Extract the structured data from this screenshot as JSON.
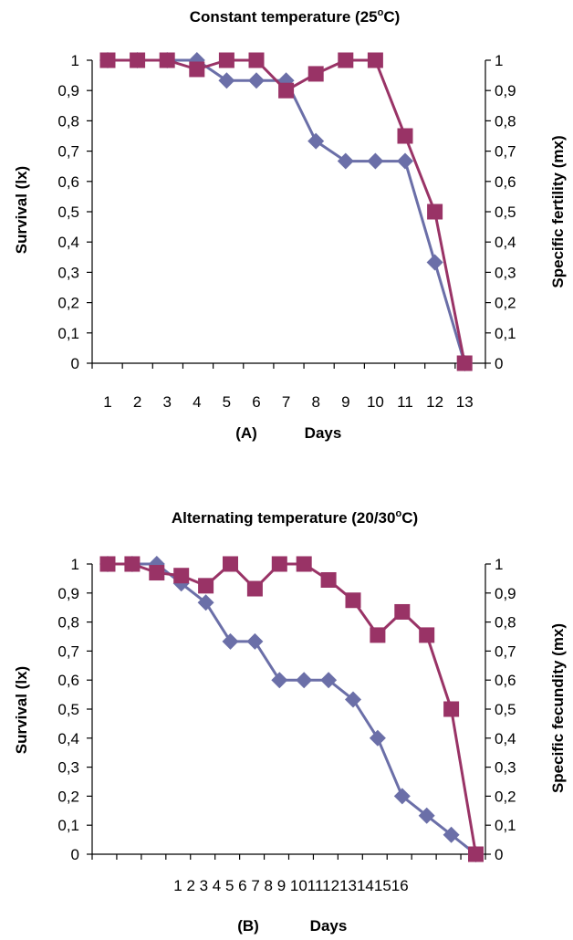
{
  "chart_data": [
    {
      "panel": "(A)",
      "type": "line",
      "title": "Constant temperature (25",
      "title_deg": "o",
      "title_tail": "C)",
      "xlabel": "Days",
      "ylabel_left": "Survival (lx)",
      "ylabel_right": "Specific fertility  (mx)",
      "ylim": [
        0,
        1
      ],
      "y_ticks": [
        "0",
        "0,1",
        "0,2",
        "0,3",
        "0,4",
        "0,5",
        "0,6",
        "0,7",
        "0,8",
        "0,9",
        "1"
      ],
      "categories": [
        "1",
        "2",
        "3",
        "4",
        "5",
        "6",
        "7",
        "8",
        "9",
        "10",
        "11",
        "12",
        "13"
      ],
      "series": [
        {
          "marker": "diamond",
          "color": "#6b6fa8",
          "values": [
            1,
            1,
            1,
            1,
            0.933,
            0.933,
            0.933,
            0.733,
            0.667,
            0.667,
            0.667,
            0.333,
            0
          ]
        },
        {
          "marker": "square",
          "color": "#993366",
          "values": [
            1,
            1,
            1,
            0.97,
            1,
            1,
            0.9,
            0.955,
            1,
            1,
            0.75,
            0.5,
            0
          ]
        }
      ]
    },
    {
      "panel": "(B)",
      "type": "line",
      "title": "Alternating temperature (20/30",
      "title_deg": "o",
      "title_tail": "C)",
      "xlabel": "Days",
      "ylabel_left": "Survival (lx)",
      "ylabel_right": "Specific fecundity (mx)",
      "ylim": [
        0,
        1
      ],
      "y_ticks": [
        "0",
        "0,1",
        "0,2",
        "0,3",
        "0,4",
        "0,5",
        "0,6",
        "0,7",
        "0,8",
        "0,9",
        "1"
      ],
      "categories": [
        "1",
        "2",
        "3",
        "4",
        "5",
        "6",
        "7",
        "8",
        "9",
        "10",
        "11",
        "12",
        "13",
        "14",
        "15",
        "16"
      ],
      "x_tick_text": "1 2 3 4 5 6 7 8 9 10111213141516",
      "series": [
        {
          "marker": "diamond",
          "color": "#6b6fa8",
          "values": [
            1,
            1,
            1,
            0.933,
            0.867,
            0.733,
            0.733,
            0.6,
            0.6,
            0.6,
            0.533,
            0.4,
            0.2,
            0.133,
            0.067,
            0
          ]
        },
        {
          "marker": "square",
          "color": "#993366",
          "values": [
            1,
            1,
            0.97,
            0.96,
            0.925,
            1,
            0.915,
            1,
            1,
            0.945,
            0.875,
            0.755,
            0.835,
            0.755,
            0.5,
            0
          ]
        }
      ]
    }
  ]
}
